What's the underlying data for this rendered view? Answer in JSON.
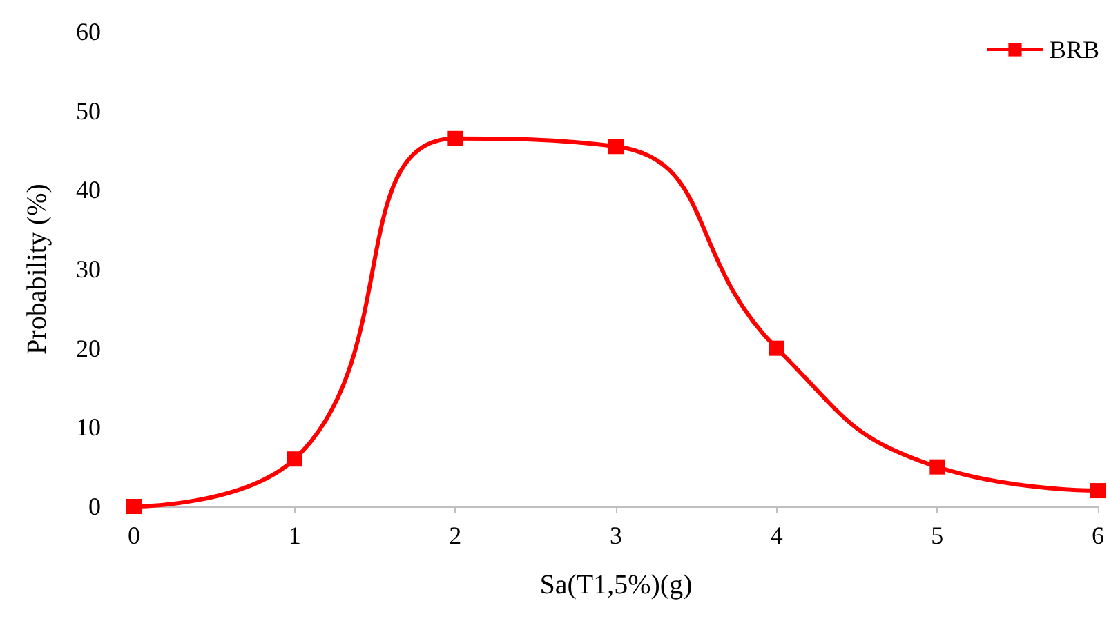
{
  "chart_data": {
    "type": "line",
    "xlabel": "Sa(T1,5%)(g)",
    "ylabel": "Probability (%)",
    "x": [
      0,
      1,
      2,
      3,
      4,
      5,
      6
    ],
    "series": [
      {
        "name": "BRB",
        "color": "#ff0000",
        "values": [
          0,
          6,
          46.5,
          45.5,
          20,
          5,
          2
        ]
      }
    ],
    "xlim": [
      0,
      6
    ],
    "xticks": [
      0,
      1,
      2,
      3,
      4,
      5,
      6
    ],
    "ylim": [
      0,
      60
    ],
    "yticks": [
      0,
      10,
      20,
      30,
      40,
      50,
      60
    ],
    "grid": false,
    "legend": "top right",
    "marker": "square",
    "line_style": "solid"
  }
}
